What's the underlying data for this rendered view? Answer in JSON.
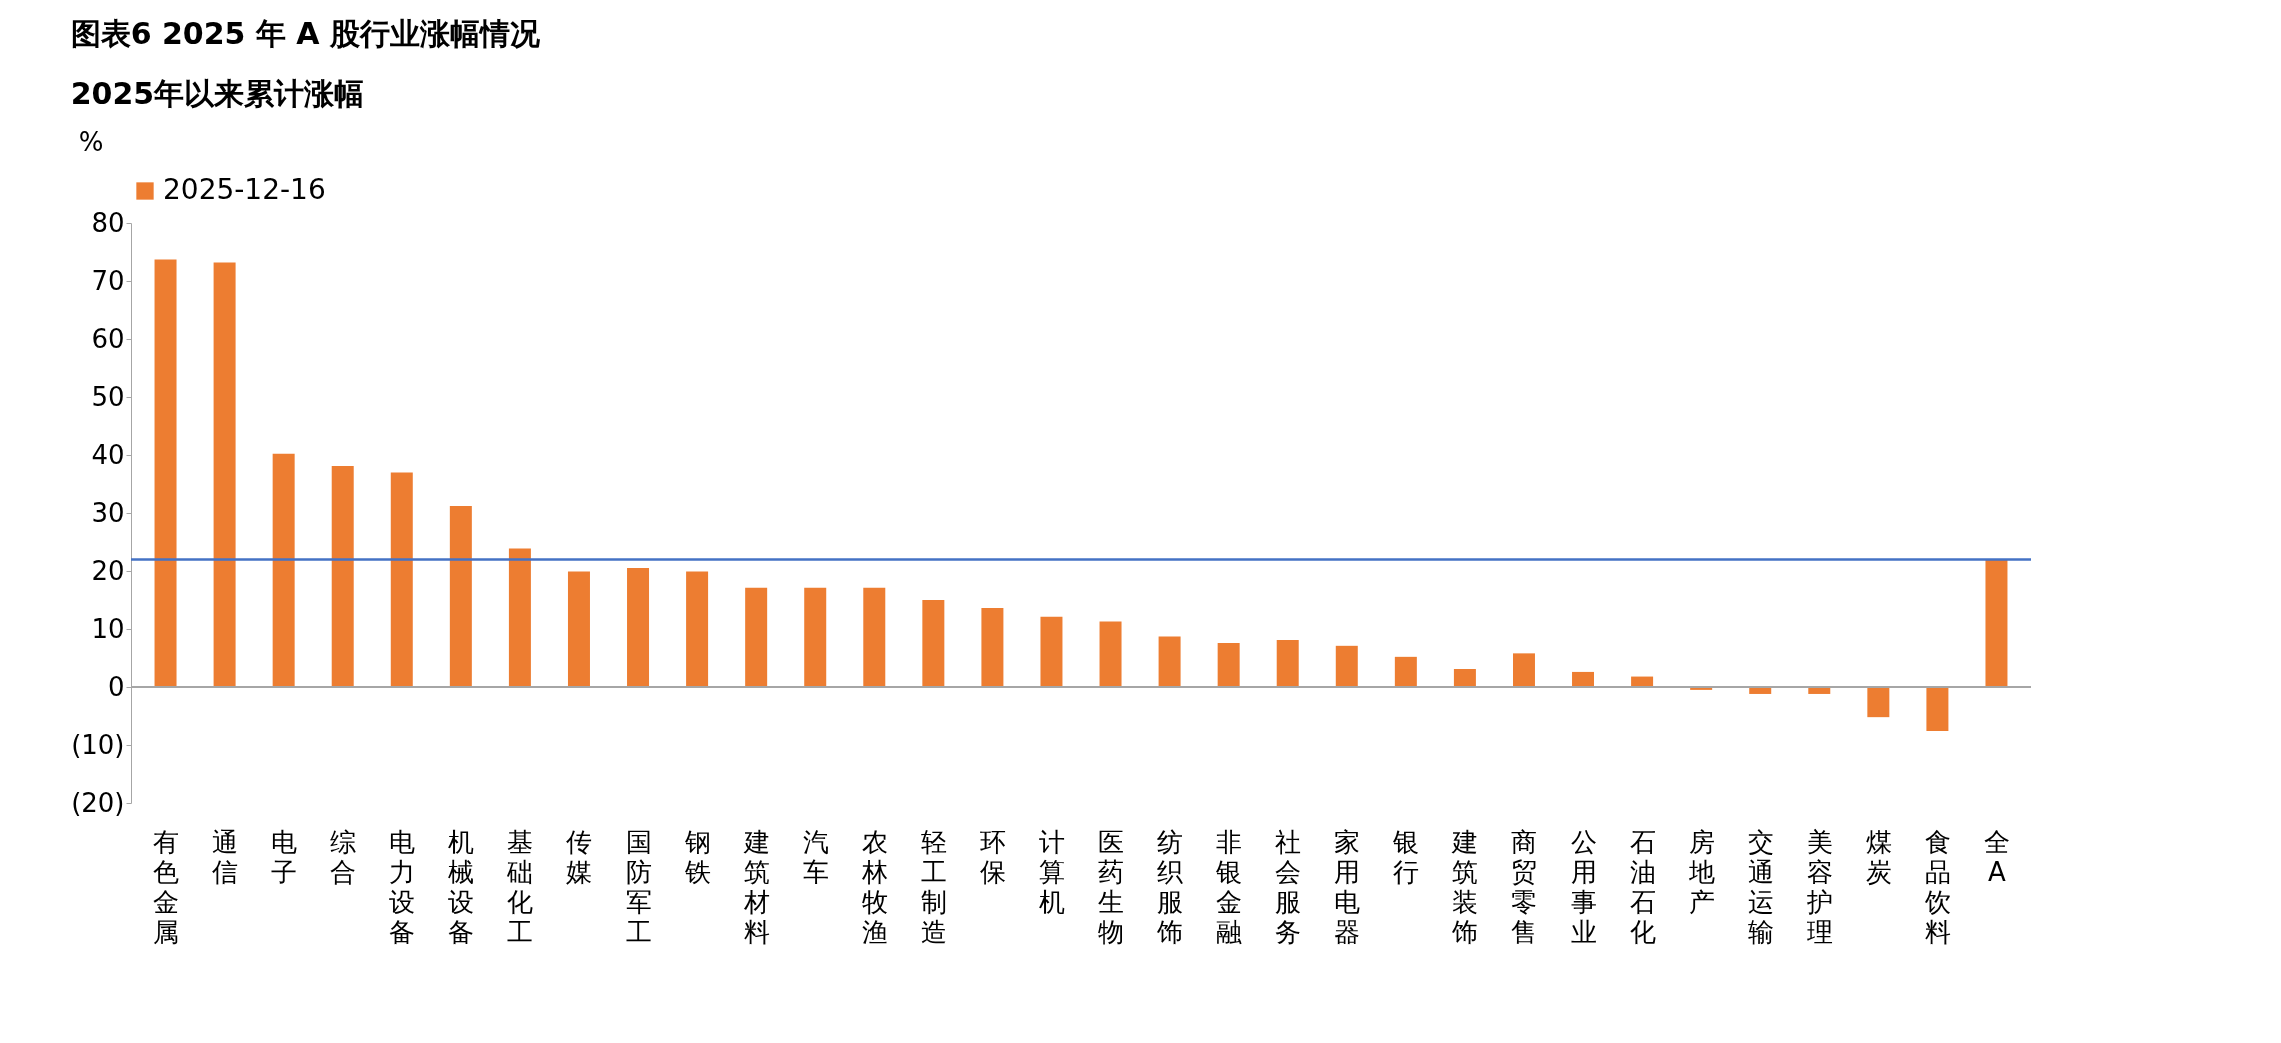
{
  "chart_data": {
    "type": "bar",
    "title": "图表6      2025 年 A 股行业涨幅情况",
    "subtitle": "2025年以来累计涨幅",
    "ylabel": "%",
    "categories": [
      "有色金属",
      "通信",
      "电子",
      "综合",
      "电力设备",
      "机械设备",
      "基础化工",
      "传媒",
      "国防军工",
      "钢铁",
      "建筑材料",
      "汽车",
      "农林牧渔",
      "轻工制造",
      "环保",
      "计算机",
      "医药生物",
      "纺织服饰",
      "非银金融",
      "社会服务",
      "家用电器",
      "银行",
      "建筑装饰",
      "商贸零售",
      "公用事业",
      "石油石化",
      "房地产",
      "交通运输",
      "美容护理",
      "煤炭",
      "食品饮料",
      "全A"
    ],
    "series": [
      {
        "name": "2025-12-16",
        "color": "#ed7d31",
        "values": [
          73.7,
          73.2,
          40.2,
          38.1,
          37.0,
          31.2,
          23.9,
          19.9,
          20.5,
          19.9,
          17.1,
          17.1,
          17.1,
          15.0,
          13.6,
          12.1,
          11.3,
          8.7,
          7.6,
          8.1,
          7.1,
          5.2,
          3.1,
          5.8,
          2.6,
          1.8,
          -0.5,
          -1.2,
          -1.2,
          -5.2,
          -7.6,
          22.0
        ]
      }
    ],
    "ylim": [
      -20,
      80
    ],
    "yticks": [
      {
        "value": -20,
        "label": "(20)"
      },
      {
        "value": -10,
        "label": "(10)"
      },
      0,
      10,
      20,
      30,
      40,
      50,
      60,
      70,
      80
    ],
    "ref_lines": [
      {
        "axis": "y",
        "value": 22.0,
        "label": null,
        "color": "#4472c4"
      }
    ],
    "legend": "top"
  }
}
